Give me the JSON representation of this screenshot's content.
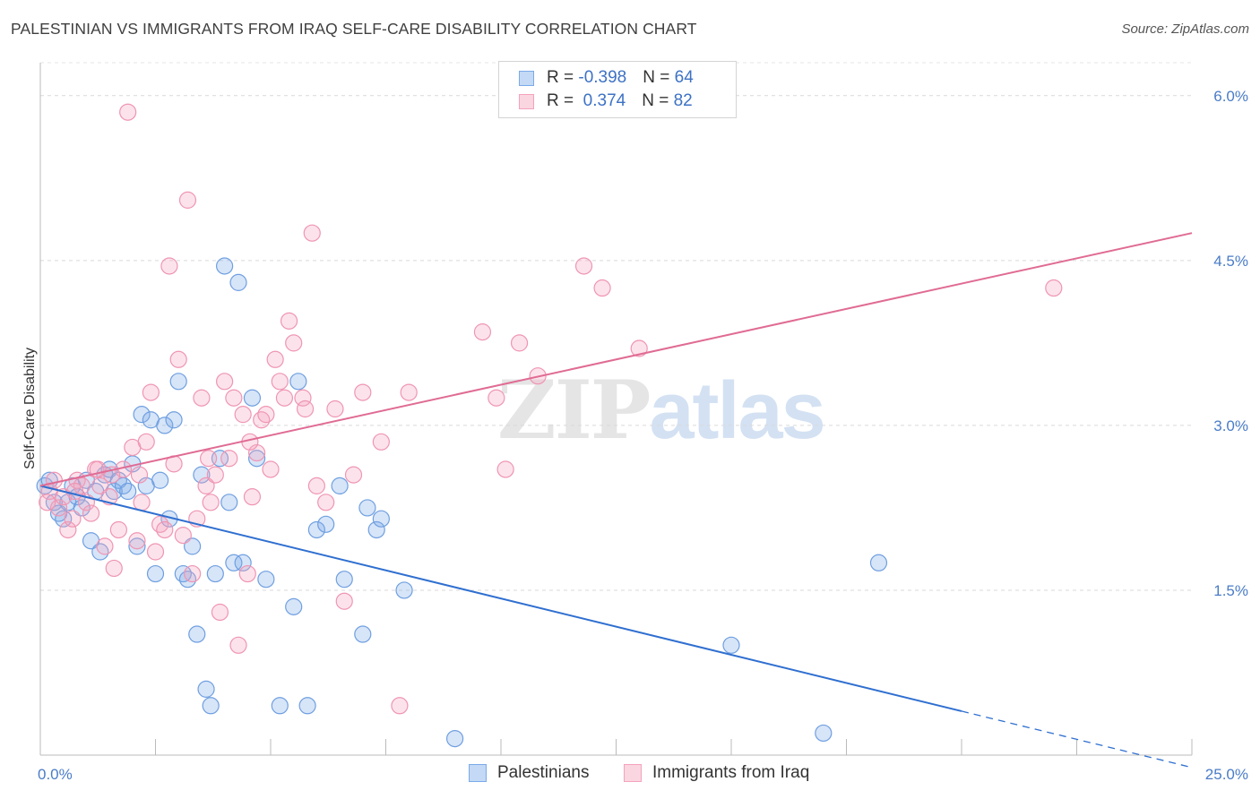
{
  "header": {
    "title": "PALESTINIAN VS IMMIGRANTS FROM IRAQ SELF-CARE DISABILITY CORRELATION CHART",
    "source": "Source: ZipAtlas.com"
  },
  "watermark": {
    "part1": "ZIP",
    "part2": "atlas"
  },
  "legend": {
    "rows": [
      {
        "r_label": "R = ",
        "r_value": "-0.398",
        "n_label": "N = ",
        "n_value": "64",
        "color": "#7aaae8"
      },
      {
        "r_label": "R = ",
        "r_value": " 0.374",
        "n_label": "N = ",
        "n_value": "82",
        "color": "#f4a3bd"
      }
    ]
  },
  "bottom_legend": {
    "items": [
      {
        "label": "Palestinians",
        "color": "#7aaae8"
      },
      {
        "label": "Immigrants from Iraq",
        "color": "#f4a3bd"
      }
    ]
  },
  "chart_data": {
    "type": "scatter",
    "ylabel": "Self-Care Disability",
    "xlabel": "",
    "xlim": [
      0,
      25
    ],
    "ylim": [
      0,
      6.3
    ],
    "y_ticks": [
      {
        "value": 1.5,
        "label": "1.5%"
      },
      {
        "value": 3.0,
        "label": "3.0%"
      },
      {
        "value": 4.5,
        "label": "4.5%"
      },
      {
        "value": 6.0,
        "label": "6.0%"
      }
    ],
    "x_ticks": [
      {
        "value": 0,
        "label": "0.0%"
      },
      {
        "value": 25,
        "label": "25.0%"
      }
    ],
    "grid": "horizontal-dashed",
    "series": [
      {
        "name": "Palestinians",
        "color": "#7aaae8",
        "trend": {
          "x1": 0,
          "y1": 2.45,
          "x2": 20,
          "y2": 0.4,
          "dash_to_x": 25
        },
        "points": [
          [
            0.1,
            2.45
          ],
          [
            0.3,
            2.3
          ],
          [
            0.4,
            2.2
          ],
          [
            0.5,
            2.15
          ],
          [
            0.6,
            2.3
          ],
          [
            0.7,
            2.45
          ],
          [
            0.8,
            2.35
          ],
          [
            0.9,
            2.25
          ],
          [
            1.0,
            2.5
          ],
          [
            1.1,
            1.95
          ],
          [
            1.2,
            2.4
          ],
          [
            1.3,
            1.85
          ],
          [
            1.4,
            2.55
          ],
          [
            1.5,
            2.6
          ],
          [
            1.6,
            2.4
          ],
          [
            1.7,
            2.5
          ],
          [
            1.8,
            2.45
          ],
          [
            1.9,
            2.4
          ],
          [
            2.0,
            2.65
          ],
          [
            2.1,
            1.9
          ],
          [
            2.2,
            3.1
          ],
          [
            2.3,
            2.45
          ],
          [
            2.4,
            3.05
          ],
          [
            2.5,
            1.65
          ],
          [
            2.6,
            2.5
          ],
          [
            2.7,
            3.0
          ],
          [
            2.8,
            2.15
          ],
          [
            2.9,
            3.05
          ],
          [
            3.0,
            3.4
          ],
          [
            3.1,
            1.65
          ],
          [
            3.2,
            1.6
          ],
          [
            3.3,
            1.9
          ],
          [
            3.4,
            1.1
          ],
          [
            3.5,
            2.55
          ],
          [
            3.6,
            0.6
          ],
          [
            3.7,
            0.45
          ],
          [
            3.8,
            1.65
          ],
          [
            3.9,
            2.7
          ],
          [
            4.0,
            4.45
          ],
          [
            4.1,
            2.3
          ],
          [
            4.2,
            1.75
          ],
          [
            4.3,
            4.3
          ],
          [
            4.4,
            1.75
          ],
          [
            4.6,
            3.25
          ],
          [
            4.7,
            2.7
          ],
          [
            4.9,
            1.6
          ],
          [
            5.2,
            0.45
          ],
          [
            5.5,
            1.35
          ],
          [
            5.6,
            3.4
          ],
          [
            5.8,
            0.45
          ],
          [
            6.0,
            2.05
          ],
          [
            6.2,
            2.1
          ],
          [
            6.5,
            2.45
          ],
          [
            6.6,
            1.6
          ],
          [
            7.0,
            1.1
          ],
          [
            7.1,
            2.25
          ],
          [
            7.3,
            2.05
          ],
          [
            7.4,
            2.15
          ],
          [
            7.9,
            1.5
          ],
          [
            9.0,
            0.15
          ],
          [
            15.0,
            1.0
          ],
          [
            17.0,
            0.2
          ],
          [
            18.2,
            1.75
          ],
          [
            0.2,
            2.5
          ]
        ]
      },
      {
        "name": "Immigrants from Iraq",
        "color": "#f4a3bd",
        "trend": {
          "x1": 0,
          "y1": 2.45,
          "x2": 25,
          "y2": 4.75
        },
        "points": [
          [
            0.2,
            2.4
          ],
          [
            0.3,
            2.5
          ],
          [
            0.4,
            2.25
          ],
          [
            0.5,
            2.35
          ],
          [
            0.6,
            2.05
          ],
          [
            0.7,
            2.15
          ],
          [
            0.8,
            2.5
          ],
          [
            0.9,
            2.45
          ],
          [
            1.0,
            2.3
          ],
          [
            1.1,
            2.2
          ],
          [
            1.2,
            2.6
          ],
          [
            1.3,
            2.45
          ],
          [
            1.4,
            1.9
          ],
          [
            1.5,
            2.35
          ],
          [
            1.6,
            1.7
          ],
          [
            1.7,
            2.05
          ],
          [
            1.8,
            2.6
          ],
          [
            1.9,
            5.85
          ],
          [
            2.0,
            2.8
          ],
          [
            2.1,
            1.95
          ],
          [
            2.2,
            2.3
          ],
          [
            2.3,
            2.85
          ],
          [
            2.4,
            3.3
          ],
          [
            2.5,
            1.85
          ],
          [
            2.6,
            2.1
          ],
          [
            2.7,
            2.05
          ],
          [
            2.8,
            4.45
          ],
          [
            2.9,
            2.65
          ],
          [
            3.0,
            3.6
          ],
          [
            3.1,
            2.0
          ],
          [
            3.2,
            5.05
          ],
          [
            3.3,
            1.65
          ],
          [
            3.4,
            2.15
          ],
          [
            3.5,
            3.25
          ],
          [
            3.6,
            2.45
          ],
          [
            3.7,
            2.3
          ],
          [
            3.8,
            2.55
          ],
          [
            3.9,
            1.3
          ],
          [
            4.0,
            3.4
          ],
          [
            4.1,
            2.7
          ],
          [
            4.2,
            3.25
          ],
          [
            4.3,
            1.0
          ],
          [
            4.4,
            3.1
          ],
          [
            4.5,
            1.65
          ],
          [
            4.6,
            2.35
          ],
          [
            4.7,
            2.75
          ],
          [
            4.8,
            3.05
          ],
          [
            4.9,
            3.1
          ],
          [
            5.0,
            2.6
          ],
          [
            5.1,
            3.6
          ],
          [
            5.2,
            3.4
          ],
          [
            5.3,
            3.25
          ],
          [
            5.4,
            3.95
          ],
          [
            5.5,
            3.75
          ],
          [
            5.7,
            3.25
          ],
          [
            5.9,
            4.75
          ],
          [
            6.0,
            2.45
          ],
          [
            6.2,
            2.3
          ],
          [
            6.4,
            3.15
          ],
          [
            6.6,
            1.4
          ],
          [
            6.8,
            2.55
          ],
          [
            7.0,
            3.3
          ],
          [
            7.4,
            2.85
          ],
          [
            7.8,
            0.45
          ],
          [
            8.0,
            3.3
          ],
          [
            9.6,
            3.85
          ],
          [
            9.9,
            3.25
          ],
          [
            10.1,
            2.6
          ],
          [
            10.4,
            3.75
          ],
          [
            10.8,
            3.45
          ],
          [
            11.8,
            4.45
          ],
          [
            12.2,
            4.25
          ],
          [
            13.0,
            3.7
          ],
          [
            22.0,
            4.25
          ],
          [
            0.15,
            2.3
          ],
          [
            1.25,
            2.6
          ],
          [
            2.15,
            2.55
          ],
          [
            3.65,
            2.7
          ],
          [
            4.55,
            2.85
          ],
          [
            5.75,
            3.15
          ],
          [
            0.75,
            2.4
          ],
          [
            1.55,
            2.55
          ]
        ]
      }
    ]
  }
}
